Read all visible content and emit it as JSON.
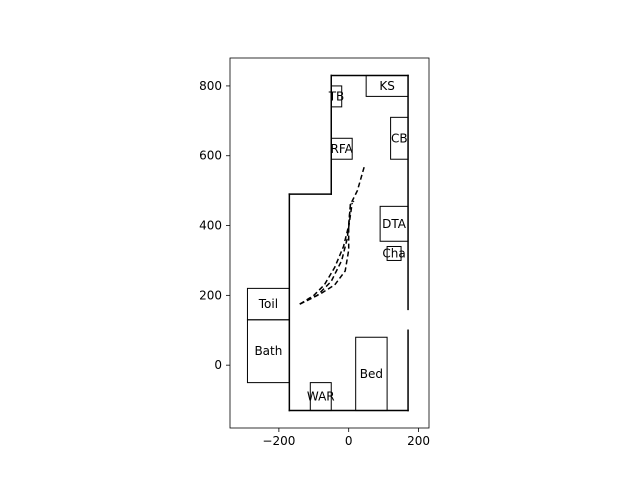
{
  "chart_data": {
    "type": "floorplan",
    "title": "",
    "xlabel": "",
    "ylabel": "",
    "xlim": [
      -340,
      230
    ],
    "ylim": [
      -180,
      880
    ],
    "x_ticks": [
      -200,
      0,
      200
    ],
    "y_ticks": [
      0,
      200,
      400,
      600,
      800
    ],
    "grid": false,
    "legend": "none",
    "walls": [
      [
        [
          -170,
          -130
        ],
        [
          -170,
          490
        ]
      ],
      [
        [
          -170,
          490
        ],
        [
          -50,
          490
        ]
      ],
      [
        [
          -50,
          490
        ],
        [
          -50,
          830
        ]
      ],
      [
        [
          -50,
          830
        ],
        [
          170,
          830
        ]
      ],
      [
        [
          170,
          830
        ],
        [
          170,
          160
        ]
      ],
      [
        [
          170,
          100
        ],
        [
          170,
          -130
        ]
      ],
      [
        [
          170,
          -130
        ],
        [
          -170,
          -130
        ]
      ]
    ],
    "furniture": [
      {
        "label": "KS",
        "x0": 50,
        "y0": 770,
        "x1": 170,
        "y1": 830
      },
      {
        "label": "TB",
        "x0": -50,
        "y0": 740,
        "x1": -20,
        "y1": 800
      },
      {
        "label": "CB",
        "x0": 120,
        "y0": 590,
        "x1": 170,
        "y1": 710
      },
      {
        "label": "RFA",
        "x0": -50,
        "y0": 590,
        "x1": 10,
        "y1": 650
      },
      {
        "label": "DTA",
        "x0": 90,
        "y0": 355,
        "x1": 170,
        "y1": 455
      },
      {
        "label": "Cha",
        "x0": 110,
        "y0": 300,
        "x1": 150,
        "y1": 340
      },
      {
        "label": "Toil",
        "x0": -290,
        "y0": 130,
        "x1": -170,
        "y1": 220
      },
      {
        "label": "Bath",
        "x0": -290,
        "y0": -50,
        "x1": -170,
        "y1": 130
      },
      {
        "label": "Bed",
        "x0": 20,
        "y0": -130,
        "x1": 110,
        "y1": 80
      },
      {
        "label": "WAR",
        "x0": -110,
        "y0": -130,
        "x1": -50,
        "y1": -50
      }
    ],
    "paths": [
      [
        [
          -140,
          175
        ],
        [
          -100,
          200
        ],
        [
          -70,
          230
        ],
        [
          -40,
          280
        ],
        [
          -15,
          340
        ],
        [
          0,
          400
        ],
        [
          5,
          460
        ],
        [
          25,
          500
        ],
        [
          45,
          570
        ]
      ],
      [
        [
          -140,
          175
        ],
        [
          -90,
          200
        ],
        [
          -50,
          240
        ],
        [
          -20,
          300
        ],
        [
          -5,
          360
        ],
        [
          5,
          430
        ],
        [
          10,
          465
        ]
      ],
      [
        [
          -140,
          175
        ],
        [
          -80,
          205
        ],
        [
          -40,
          230
        ],
        [
          -10,
          270
        ],
        [
          0,
          330
        ],
        [
          0,
          400
        ],
        [
          5,
          460
        ],
        [
          15,
          470
        ]
      ]
    ]
  }
}
